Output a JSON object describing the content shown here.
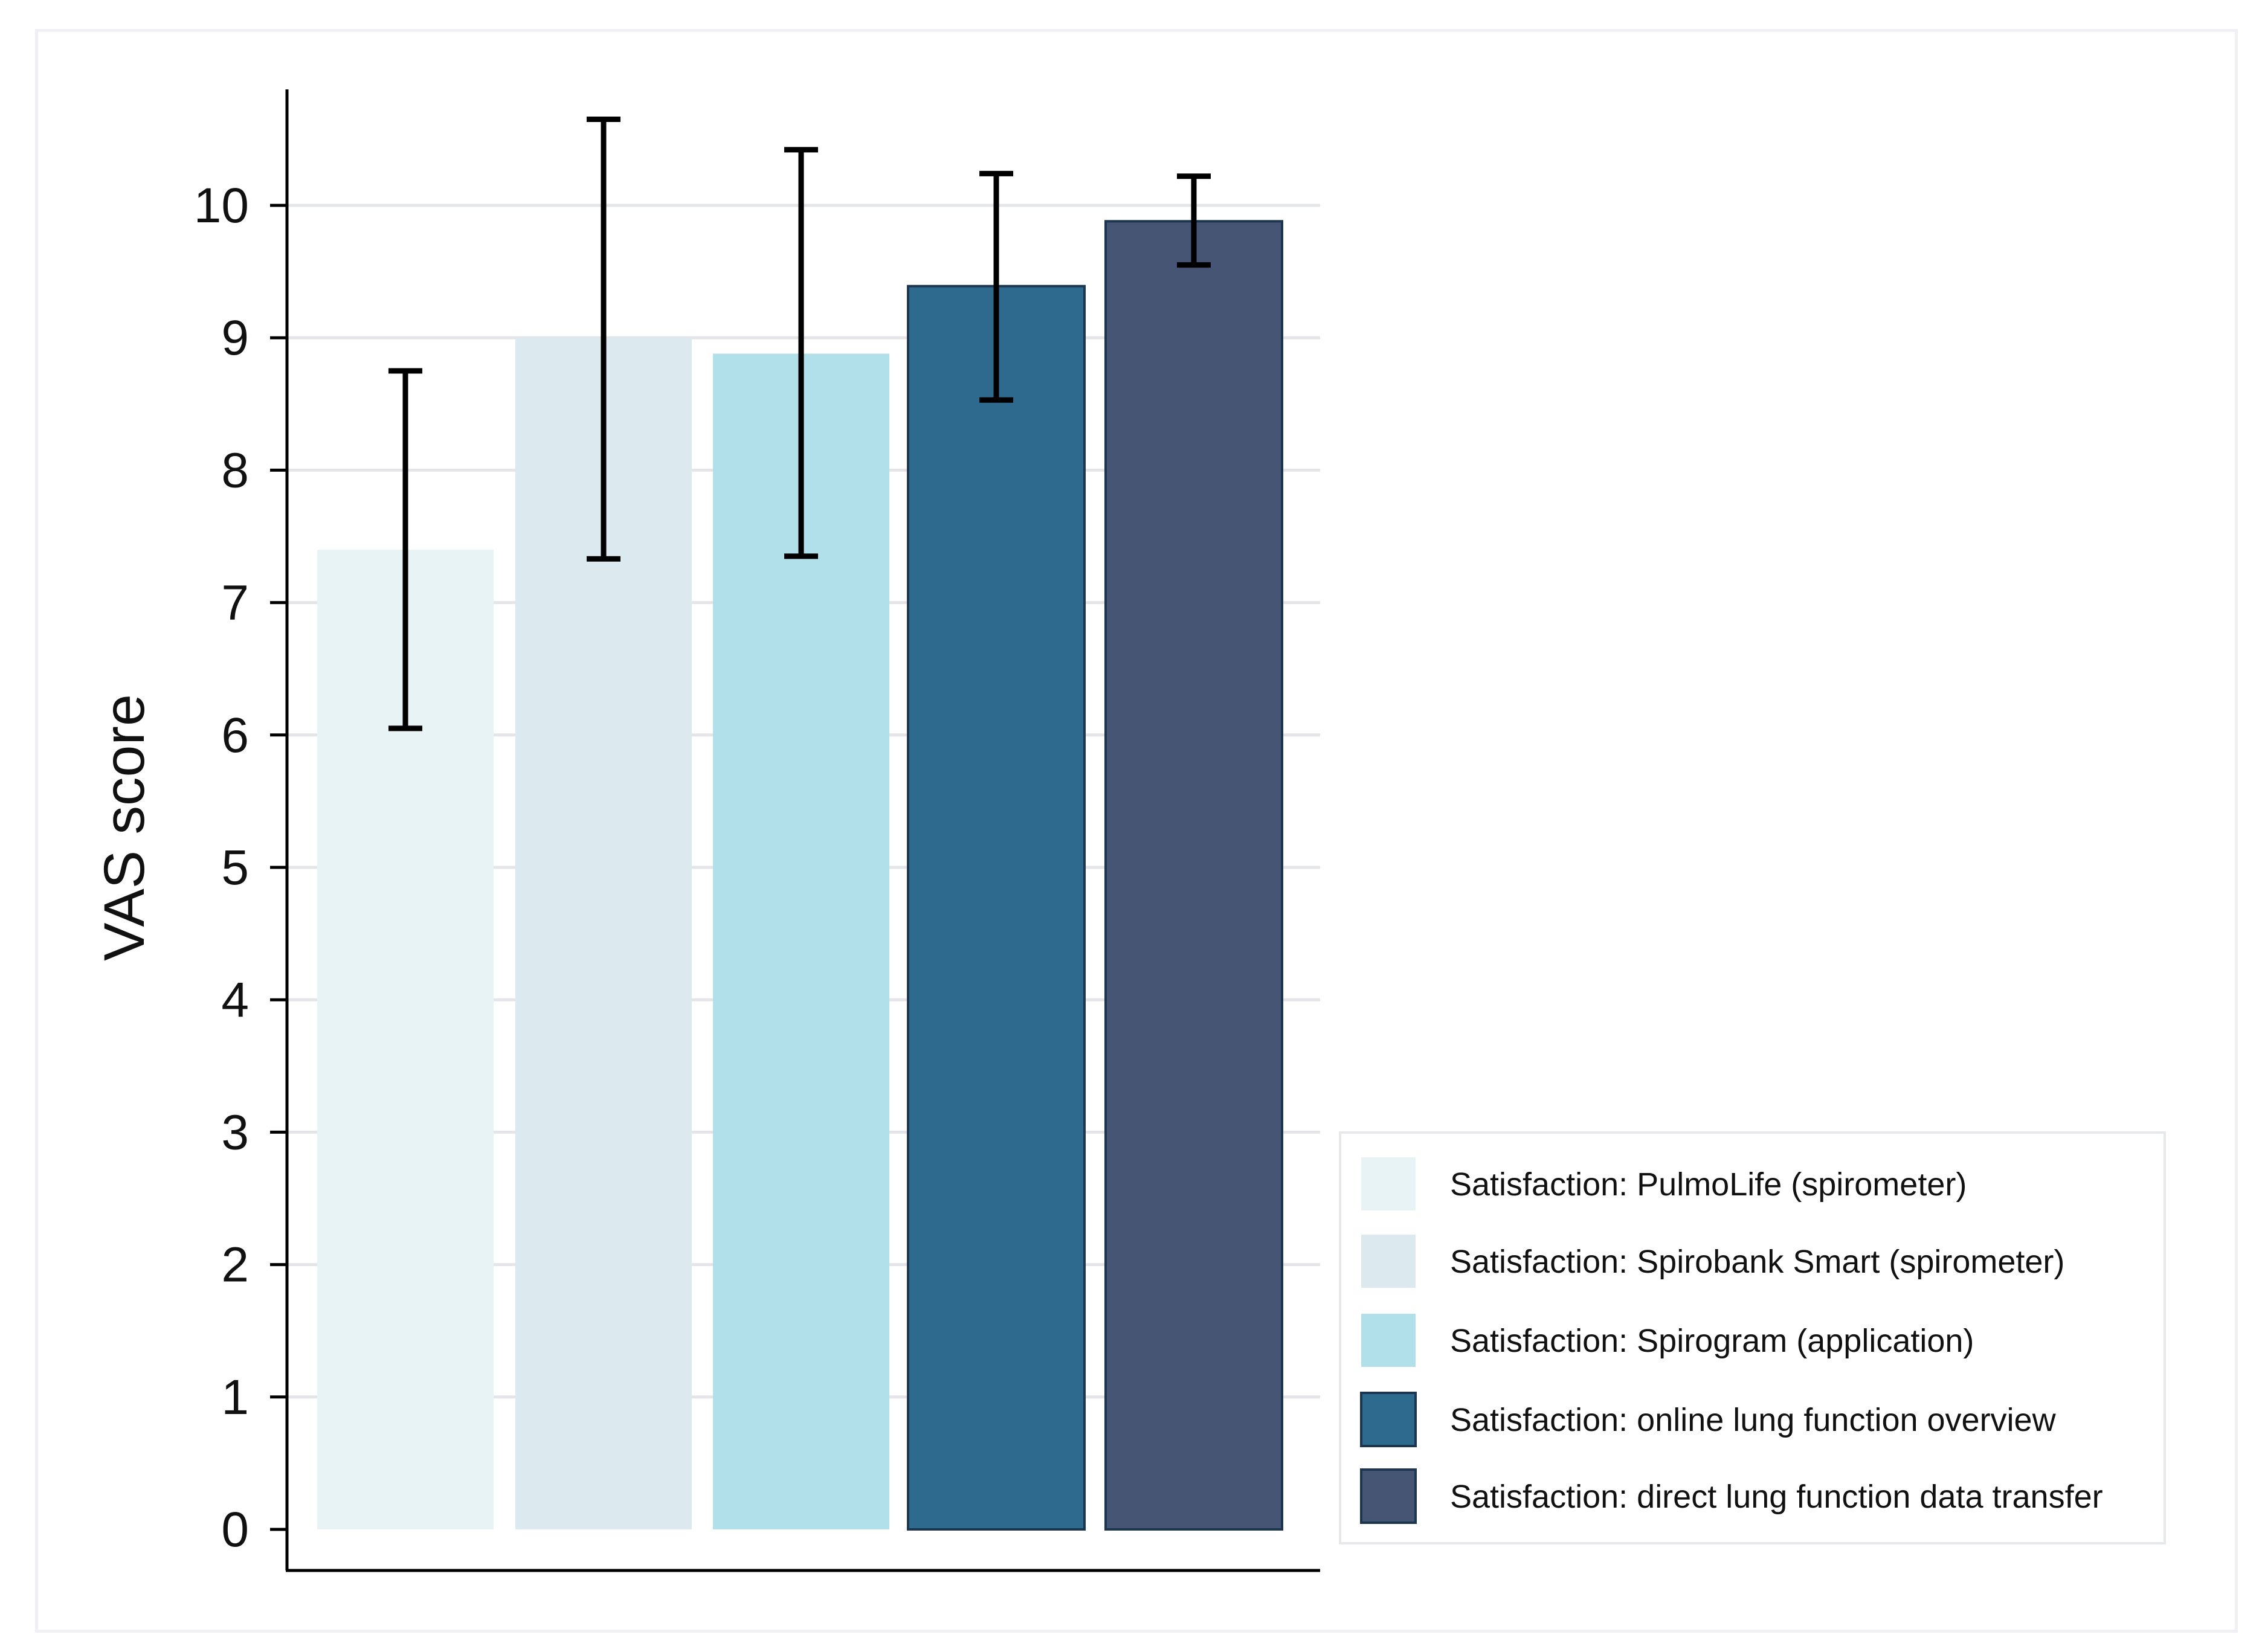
{
  "chart_data": {
    "type": "bar",
    "title": "",
    "xlabel": "",
    "ylabel": "VAS score",
    "ylim": [
      0,
      10.5
    ],
    "yticks": [
      0,
      1,
      2,
      3,
      4,
      5,
      6,
      7,
      8,
      9,
      10
    ],
    "grid": true,
    "legend_position": "bottom-right",
    "series": [
      {
        "name": "Satisfaction: PulmoLife (spirometer)",
        "value": 7.4,
        "error_low": 6.05,
        "error_high": 8.75,
        "color": "#e7f3f4"
      },
      {
        "name": "Satisfaction: Spirobank Smart (spirometer)",
        "value": 9.0,
        "error_low": 7.33,
        "error_high": 10.65,
        "color": "#dce9ee"
      },
      {
        "name": "Satisfaction: Spirogram (application)",
        "value": 8.88,
        "error_low": 7.35,
        "error_high": 10.42,
        "color": "#b1e0ea"
      },
      {
        "name": "Satisfaction: online lung function overview",
        "value": 9.39,
        "error_low": 8.53,
        "error_high": 10.24,
        "color": "#2e6a8e"
      },
      {
        "name": "Satisfaction: direct lung function data transfer",
        "value": 9.88,
        "error_low": 9.55,
        "error_high": 10.22,
        "color": "#465574"
      }
    ]
  }
}
